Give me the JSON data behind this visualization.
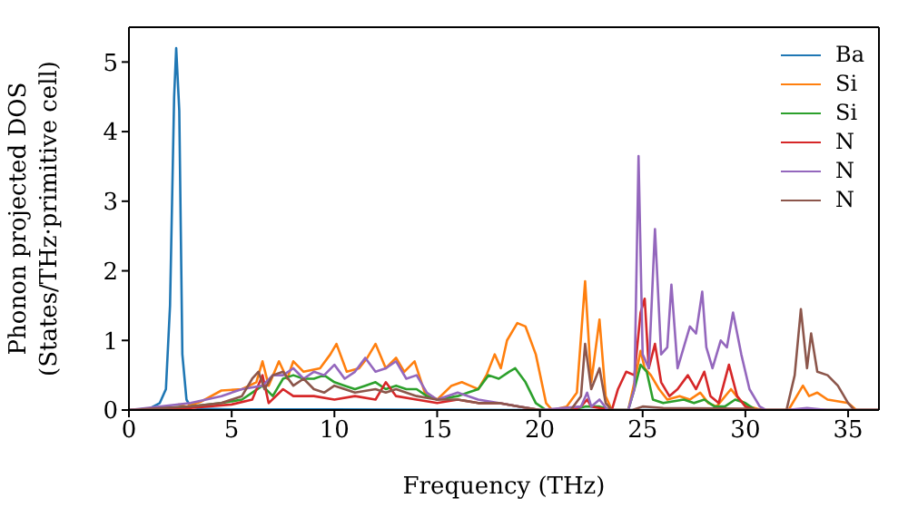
{
  "chart_data": {
    "type": "line",
    "xlabel": "Frequency (THz)",
    "ylabel": "Phonon projected DOS\n(States/THz·primitive cell)",
    "xlim": [
      0,
      36.5
    ],
    "xticks": [
      0,
      5,
      10,
      15,
      20,
      25,
      30,
      35
    ],
    "ylim": [
      0,
      5.5
    ],
    "yticks": [
      0,
      1,
      2,
      3,
      4,
      5
    ],
    "legend": "top right",
    "marker": "none",
    "line_style": "solid",
    "series": [
      {
        "name": "Ba",
        "color": "#1f77b4",
        "x": [
          0,
          1,
          1.5,
          1.8,
          2.0,
          2.2,
          2.3,
          2.45,
          2.6,
          2.8,
          3.0,
          3.5,
          5,
          10,
          20,
          36.5
        ],
        "values": [
          0,
          0.02,
          0.1,
          0.3,
          1.5,
          4.5,
          5.2,
          4.3,
          0.8,
          0.15,
          0.05,
          0.02,
          0.01,
          0.01,
          0,
          0
        ]
      },
      {
        "name": "Si",
        "color": "#ff7f0e",
        "x": [
          2.4,
          2.8,
          3.5,
          4.5,
          5.5,
          6.2,
          6.5,
          6.8,
          7.3,
          7.7,
          8,
          8.5,
          9.3,
          9.8,
          10.1,
          10.6,
          11.2,
          11.6,
          12,
          12.5,
          13,
          13.4,
          13.9,
          14.4,
          15,
          15.7,
          16.2,
          16.6,
          17,
          17.4,
          17.8,
          18.1,
          18.4,
          18.9,
          19.3,
          19.8,
          20.3,
          20.6,
          21.3,
          21.8,
          22.2,
          22.5,
          22.9,
          23.2,
          23.5,
          24.3,
          24.6,
          24.9,
          25.1,
          25.4,
          25.8,
          26.2,
          26.8,
          27.3,
          27.8,
          28.2,
          28.6,
          29.3,
          29.7,
          30.2,
          30.8,
          32.1,
          32.5,
          32.8,
          33.1,
          33.5,
          34,
          35,
          35.4,
          36.5
        ],
        "values": [
          0.08,
          0.05,
          0.12,
          0.28,
          0.3,
          0.4,
          0.7,
          0.35,
          0.7,
          0.45,
          0.7,
          0.55,
          0.6,
          0.8,
          0.95,
          0.55,
          0.6,
          0.75,
          0.95,
          0.6,
          0.75,
          0.55,
          0.7,
          0.25,
          0.15,
          0.35,
          0.4,
          0.35,
          0.3,
          0.5,
          0.8,
          0.6,
          1.0,
          1.25,
          1.2,
          0.8,
          0.1,
          0,
          0.05,
          0.25,
          1.85,
          0.4,
          1.3,
          0.2,
          0,
          0,
          0.4,
          0.85,
          0.6,
          0.5,
          0.3,
          0.15,
          0.2,
          0.15,
          0.25,
          0.1,
          0.05,
          0.3,
          0.15,
          0.05,
          0,
          0,
          0.2,
          0.35,
          0.2,
          0.25,
          0.15,
          0.1,
          0,
          0
        ]
      },
      {
        "name": "Si",
        "color": "#2ca02c",
        "x": [
          0,
          3,
          4.5,
          5.5,
          6,
          6.5,
          7,
          7.5,
          8,
          8.5,
          9,
          9.5,
          10,
          10.5,
          11,
          11.5,
          12,
          12.5,
          13,
          13.5,
          14,
          14.5,
          15,
          16,
          16.5,
          17,
          17.5,
          18,
          18.5,
          18.8,
          19.3,
          19.8,
          20.3,
          21.5,
          22.2,
          22.9,
          23.5,
          24.3,
          24.6,
          24.9,
          25.2,
          25.5,
          26,
          27,
          27.5,
          28,
          28.5,
          29,
          29.5,
          30,
          30.5,
          36.5
        ],
        "values": [
          0,
          0.05,
          0.1,
          0.15,
          0.25,
          0.35,
          0.2,
          0.45,
          0.5,
          0.45,
          0.45,
          0.5,
          0.4,
          0.35,
          0.3,
          0.35,
          0.4,
          0.3,
          0.35,
          0.3,
          0.3,
          0.2,
          0.15,
          0.2,
          0.25,
          0.3,
          0.5,
          0.45,
          0.55,
          0.6,
          0.4,
          0.1,
          0,
          0,
          0.05,
          0.05,
          0,
          0,
          0.3,
          0.65,
          0.55,
          0.15,
          0.1,
          0.15,
          0.1,
          0.15,
          0.05,
          0.05,
          0.15,
          0.1,
          0,
          0
        ]
      },
      {
        "name": "N",
        "color": "#d62728",
        "x": [
          0,
          3,
          5,
          6,
          6.5,
          6.8,
          7.5,
          8,
          9,
          10,
          11,
          12,
          12.5,
          13,
          14,
          15,
          16,
          17,
          18,
          19,
          20,
          21.5,
          22,
          22.3,
          22.5,
          23.5,
          23.8,
          24.2,
          24.6,
          24.9,
          25.1,
          25.3,
          25.6,
          25.9,
          26.3,
          26.7,
          27.2,
          27.6,
          28,
          28.3,
          28.7,
          29.2,
          29.6,
          30,
          30.5,
          36.5
        ],
        "values": [
          0,
          0.03,
          0.08,
          0.15,
          0.5,
          0.1,
          0.3,
          0.2,
          0.2,
          0.15,
          0.2,
          0.15,
          0.4,
          0.2,
          0.15,
          0.1,
          0.15,
          0.1,
          0.1,
          0.05,
          0,
          0,
          0.05,
          0.15,
          0.05,
          0,
          0.3,
          0.55,
          0.5,
          1.4,
          1.6,
          0.6,
          0.95,
          0.4,
          0.2,
          0.3,
          0.5,
          0.3,
          0.55,
          0.2,
          0.1,
          0.65,
          0.2,
          0.05,
          0,
          0
        ]
      },
      {
        "name": "N",
        "color": "#9467bd",
        "x": [
          0,
          3,
          4.5,
          5.5,
          6.5,
          7,
          7.5,
          8,
          8.5,
          9,
          9.5,
          10,
          10.5,
          11,
          11.5,
          12,
          12.5,
          13,
          13.5,
          14,
          14.5,
          15,
          16,
          17,
          18,
          19,
          20,
          22,
          22.3,
          22.5,
          22.9,
          23.3,
          24.3,
          24.6,
          24.8,
          25.0,
          25.3,
          25.6,
          25.9,
          26.2,
          26.4,
          26.7,
          27,
          27.3,
          27.6,
          27.9,
          28.1,
          28.4,
          28.8,
          29.1,
          29.4,
          29.8,
          30.2,
          30.7,
          31,
          32,
          33,
          34,
          36.5
        ],
        "values": [
          0,
          0.1,
          0.2,
          0.3,
          0.35,
          0.5,
          0.5,
          0.6,
          0.45,
          0.55,
          0.5,
          0.65,
          0.45,
          0.55,
          0.75,
          0.55,
          0.6,
          0.7,
          0.45,
          0.5,
          0.25,
          0.15,
          0.25,
          0.15,
          0.1,
          0.05,
          0,
          0.05,
          0.25,
          0.05,
          0.15,
          0,
          0,
          0.3,
          3.65,
          0.8,
          0.6,
          2.6,
          0.8,
          0.9,
          1.8,
          0.6,
          0.9,
          1.2,
          1.1,
          1.7,
          0.9,
          0.6,
          1.0,
          0.9,
          1.4,
          0.8,
          0.3,
          0.05,
          0,
          0,
          0.03,
          0,
          0
        ]
      },
      {
        "name": "N",
        "color": "#8c564b",
        "x": [
          0,
          3,
          4.5,
          5.5,
          6,
          6.3,
          6.6,
          7,
          7.5,
          8,
          8.5,
          9,
          9.5,
          10,
          10.5,
          11,
          12,
          12.5,
          13,
          14,
          15,
          16,
          17,
          18,
          19,
          20,
          21.5,
          22,
          22.2,
          22.5,
          22.9,
          23.2,
          23.5,
          24.5,
          25,
          26,
          30,
          31,
          32,
          32.4,
          32.7,
          33.0,
          33.2,
          33.5,
          34,
          34.5,
          35,
          35.3,
          36.5
        ],
        "values": [
          0,
          0.05,
          0.1,
          0.2,
          0.45,
          0.55,
          0.3,
          0.5,
          0.55,
          0.35,
          0.45,
          0.3,
          0.25,
          0.35,
          0.3,
          0.25,
          0.3,
          0.25,
          0.3,
          0.2,
          0.15,
          0.15,
          0.1,
          0.1,
          0.05,
          0,
          0,
          0.2,
          0.95,
          0.3,
          0.6,
          0.1,
          0,
          0,
          0.05,
          0.03,
          0.02,
          0,
          0,
          0.5,
          1.45,
          0.6,
          1.1,
          0.55,
          0.5,
          0.35,
          0.1,
          0,
          0
        ]
      }
    ]
  }
}
